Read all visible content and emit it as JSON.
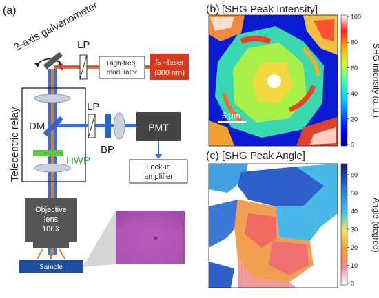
{
  "panels": {
    "a": {
      "label": "(a)",
      "galvanometer": "2-axis galvanometer",
      "lp_top": "LP",
      "modulator": [
        "High-freq.",
        "modulator"
      ],
      "laser": [
        "fs –laser",
        "(800 nm)"
      ],
      "relay": "Telecentric relay",
      "dm": "DM",
      "lp_mid": "LP",
      "pmt": "PMT",
      "bp": "BP",
      "hwp": "HWP",
      "lockin": [
        "Lock-in",
        "amplifier"
      ],
      "objective": [
        "Objective",
        "lens",
        "100X"
      ],
      "sample": "Sample"
    },
    "b": {
      "label": "(b)",
      "title": "[SHG Peak Intensity]",
      "scalebar": "5 μm",
      "colorbar_label": "SHG intensity (a. u.)",
      "ticks": [
        "100",
        "80",
        "60",
        "40",
        "20",
        "0"
      ]
    },
    "c": {
      "label": "(c)",
      "title": "[SHG Peak Angle]",
      "colorbar_label": "Angle (degree)",
      "ticks": [
        "60",
        "50",
        "40",
        "30",
        "20",
        "10",
        "0"
      ]
    }
  },
  "colors": {
    "laser_red": "#d83a1e",
    "beam_orange": "#e07a20",
    "beam_blue": "#3a6fd0",
    "pmt_dark": "#444444",
    "sample_blue": "#1e4fa0",
    "hwp_green": "#66c24a",
    "dm_blue": "#3366cc",
    "bp_blue": "#2a66c8"
  }
}
